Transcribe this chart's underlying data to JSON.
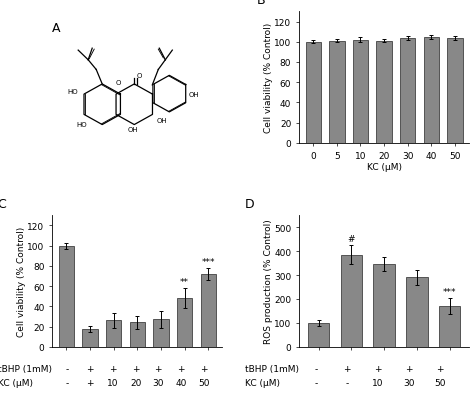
{
  "panel_B": {
    "categories": [
      "0",
      "5",
      "10",
      "20",
      "30",
      "40",
      "50"
    ],
    "values": [
      100,
      101,
      102,
      101,
      104,
      105,
      104
    ],
    "errors": [
      1.5,
      1.5,
      2.5,
      1.5,
      2.0,
      2.0,
      2.0
    ],
    "ylabel": "Cell viability (% Control)",
    "xlabel": "KC (μM)",
    "ylim": [
      0,
      130
    ],
    "yticks": [
      0,
      20,
      40,
      60,
      80,
      100,
      120
    ],
    "bar_color": "#888888",
    "label": "B"
  },
  "panel_C": {
    "tbhp_labels": [
      "-",
      "+",
      "+",
      "+",
      "+",
      "+",
      "+"
    ],
    "kc_labels": [
      "-",
      "+",
      "10",
      "20",
      "30",
      "40",
      "50"
    ],
    "values": [
      100,
      18,
      26,
      24,
      27,
      48,
      72
    ],
    "errors": [
      3,
      3,
      7,
      6,
      8,
      10,
      6
    ],
    "ylabel": "Cell viability (% Control)",
    "ylim": [
      0,
      130
    ],
    "yticks": [
      0,
      20,
      40,
      60,
      80,
      100,
      120
    ],
    "bar_color": "#888888",
    "label": "C",
    "sig_indices": [
      5,
      6
    ],
    "sig_labels": [
      "**",
      "***"
    ]
  },
  "panel_D": {
    "tbhp_labels": [
      "-",
      "+",
      "+",
      "+",
      "+"
    ],
    "kc_labels": [
      "-",
      "-",
      "10",
      "30",
      "50"
    ],
    "values": [
      100,
      385,
      345,
      290,
      170
    ],
    "errors": [
      12,
      40,
      30,
      30,
      35
    ],
    "ylabel": "ROS production (% Control)",
    "ylim": [
      0,
      550
    ],
    "yticks": [
      0,
      100,
      200,
      300,
      400,
      500
    ],
    "bar_color": "#888888",
    "label": "D",
    "sig_indices": [
      1,
      4
    ],
    "sig_labels": [
      "#",
      "***"
    ]
  },
  "label_A": "A",
  "background_color": "#ffffff",
  "font_size": 6.5,
  "label_fontsize": 9
}
